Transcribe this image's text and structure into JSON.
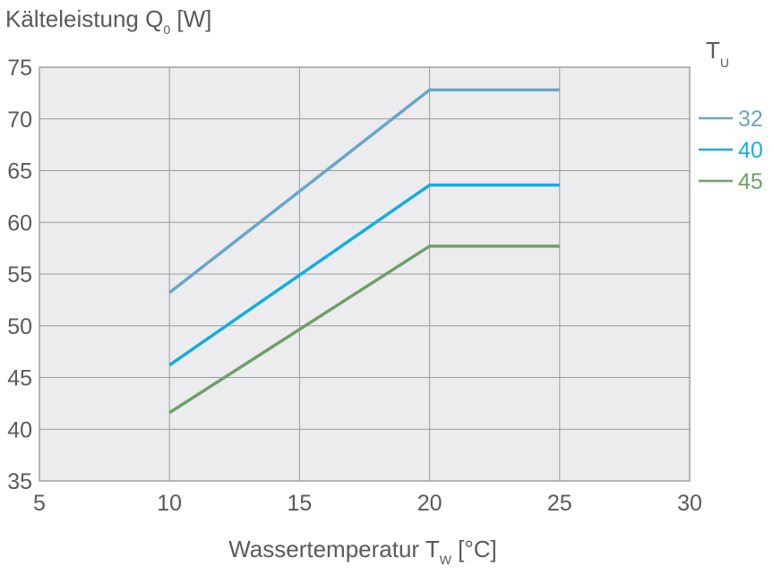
{
  "chart_data": {
    "type": "line",
    "title": "",
    "ylabel_main": "Kälteleistung Q",
    "ylabel_sub": "0",
    "ylabel_unit": " [W]",
    "xlabel_main": "Wassertemperatur T",
    "xlabel_sub": "W",
    "xlabel_unit": " [°C]",
    "legend_title_main": "T",
    "legend_title_sub": "U",
    "legend_position": "right",
    "xlim": [
      5,
      30
    ],
    "ylim": [
      35,
      75
    ],
    "xticks": [
      5,
      10,
      15,
      20,
      25,
      30
    ],
    "yticks": [
      35,
      40,
      45,
      50,
      55,
      60,
      65,
      70,
      75
    ],
    "grid": true,
    "series": [
      {
        "name": "32",
        "color": "#6aa6c8",
        "x": [
          10,
          20,
          25
        ],
        "y": [
          53.2,
          72.8,
          72.8
        ]
      },
      {
        "name": "40",
        "color": "#12aee3",
        "x": [
          10,
          20,
          25
        ],
        "y": [
          46.2,
          63.6,
          63.6
        ]
      },
      {
        "name": "45",
        "color": "#6f9f6b",
        "x": [
          10,
          20,
          25
        ],
        "y": [
          41.6,
          57.7,
          57.7
        ]
      }
    ]
  }
}
